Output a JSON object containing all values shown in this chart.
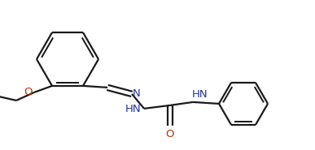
{
  "bg_color": "#ffffff",
  "bond_color": "#1a1a1a",
  "N_color": "#2233aa",
  "O_color": "#bb3300",
  "lw": 1.6,
  "figsize": [
    3.87,
    1.85
  ],
  "dpi": 100,
  "xlim": [
    0.0,
    3.87
  ],
  "ylim": [
    0.0,
    1.85
  ]
}
